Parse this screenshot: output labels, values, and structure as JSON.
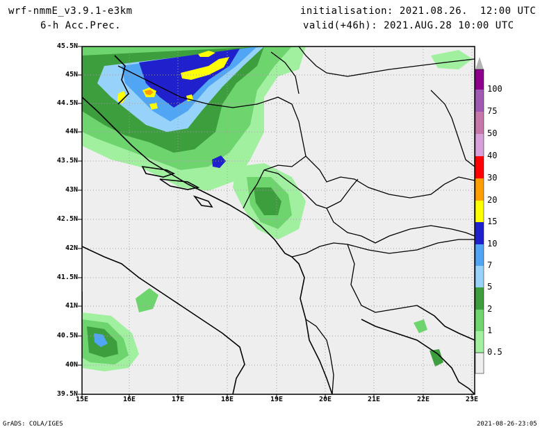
{
  "header": {
    "model": "wrf-nmmE_v3.9.1-e3km",
    "field": "6-h Acc.Prec.",
    "init": "initialisation: 2021.08.26.  12:00 UTC",
    "valid": "valid(+46h): 2021.AUG.28 10:00 UTC"
  },
  "footer": {
    "left": "GrADS: COLA/IGES",
    "right": "2021-08-26-23:05"
  },
  "axes": {
    "lat_labels": [
      "45.5N",
      "45N",
      "44.5N",
      "44N",
      "43.5N",
      "43N",
      "42.5N",
      "42N",
      "41.5N",
      "41N",
      "40.5N",
      "40N",
      "39.5N"
    ],
    "lon_labels": [
      "15E",
      "16E",
      "17E",
      "18E",
      "19E",
      "20E",
      "21E",
      "22E",
      "23E"
    ]
  },
  "colorbar": {
    "levels": [
      "0.5",
      "1",
      "2",
      "5",
      "7",
      "10",
      "15",
      "20",
      "30",
      "40",
      "50",
      "75",
      "100"
    ],
    "colors": [
      "#a0f0a0",
      "#6ed46e",
      "#3c9e3c",
      "#96d2fa",
      "#50a5f5",
      "#2020cc",
      "#ffff00",
      "#ff9e00",
      "#ff0000",
      "#d8a0d8",
      "#c878a8",
      "#a05ab4",
      "#8c008c",
      "#b4b4b4"
    ]
  },
  "map": {
    "background": "#eeeeee",
    "border_color": "#000000",
    "grid_color": "#a0a0a0"
  }
}
